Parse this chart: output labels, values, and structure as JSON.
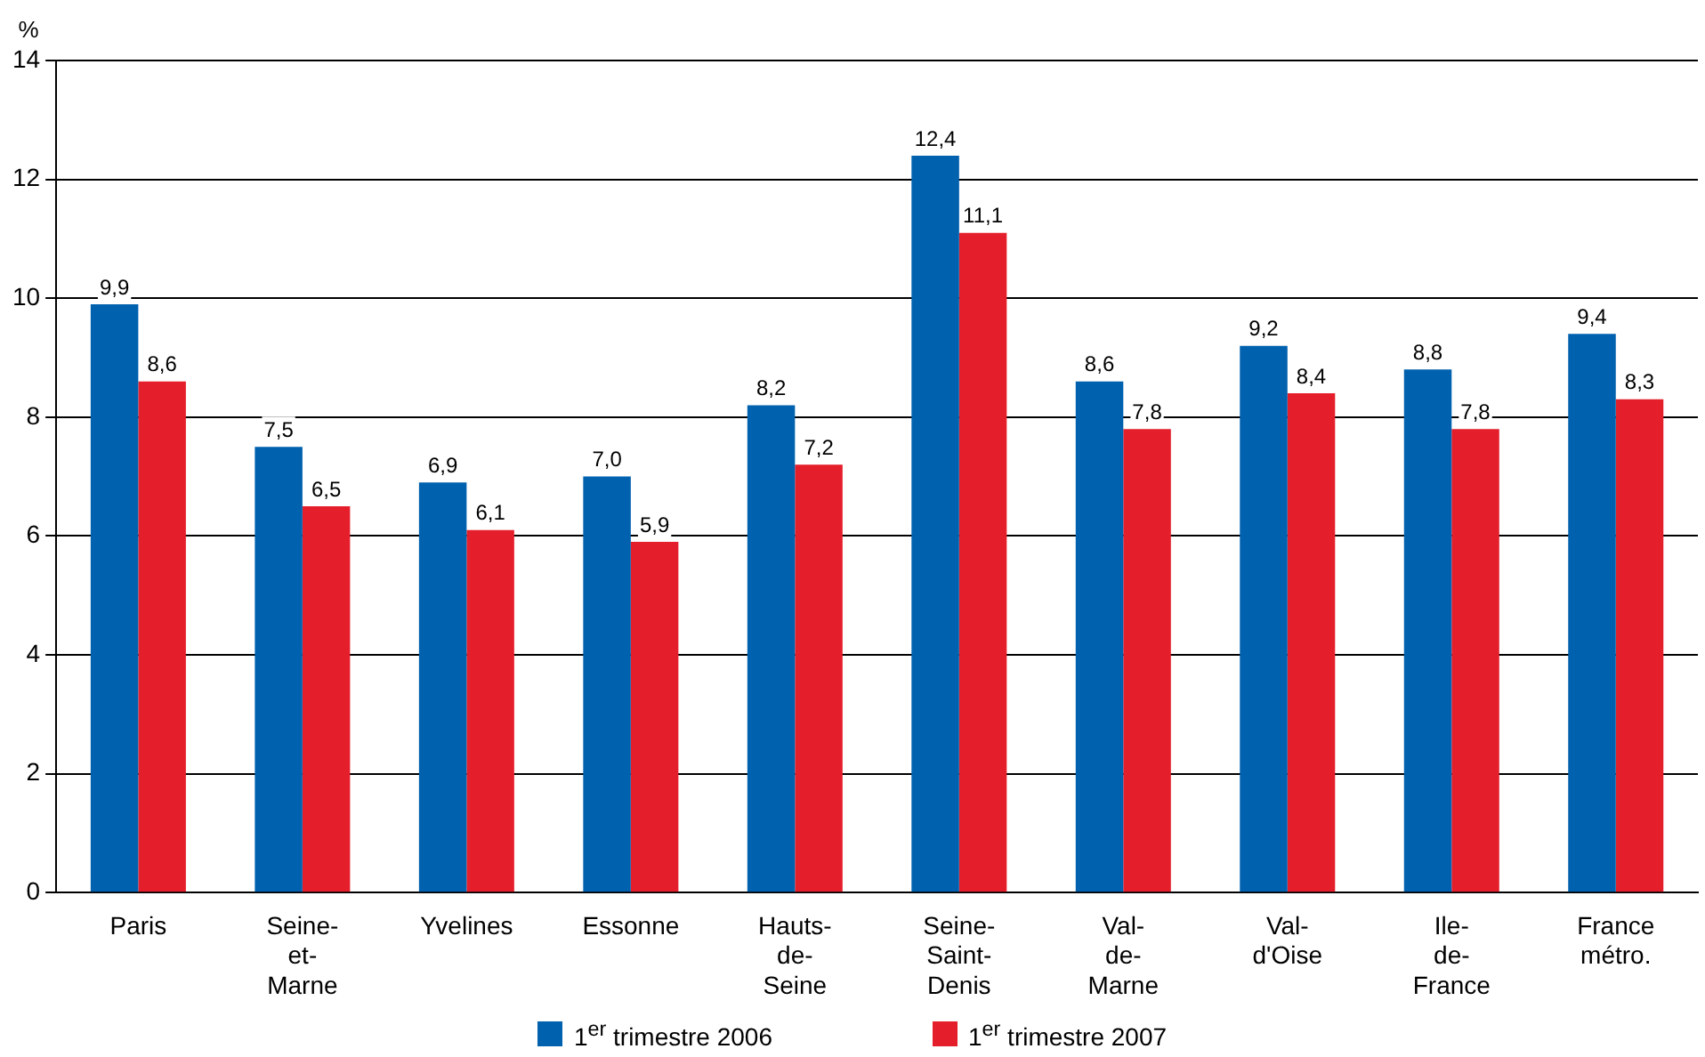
{
  "chart_data": {
    "type": "bar",
    "ylabel": "%",
    "categories": [
      "Paris",
      "Seine-et-Marne",
      "Yvelines",
      "Essonne",
      "Hauts-de-Seine",
      "Seine-Saint-Denis",
      "Val-de-Marne",
      "Val-d'Oise",
      "Ile-de-France",
      "France métro."
    ],
    "series": [
      {
        "name": "1$^{er}$ trimestre 2006",
        "color": "#0061ae",
        "values": [
          9.9,
          7.5,
          6.9,
          7.0,
          8.2,
          12.4,
          8.6,
          9.2,
          8.8,
          9.4
        ],
        "value_labels": [
          "9,9",
          "7,5",
          "6,9",
          "7,0",
          "8,2",
          "12,4",
          "8,6",
          "9,2",
          "8,8",
          "9,4"
        ]
      },
      {
        "name": "1$^{er}$ trimestre 2007",
        "color": "#e41f2b",
        "values": [
          8.6,
          6.5,
          6.1,
          5.9,
          7.2,
          11.1,
          7.8,
          8.4,
          7.8,
          8.3
        ],
        "value_labels": [
          "8,6",
          "6,5",
          "6,1",
          "5,9",
          "7,2",
          "11,1",
          "7,8",
          "8,4",
          "7,8",
          "8,3"
        ]
      }
    ],
    "ylim": [
      0,
      14
    ],
    "yticks": [
      0,
      2,
      4,
      6,
      8,
      10,
      12,
      14
    ],
    "grid": "y",
    "legend": "bottom"
  }
}
